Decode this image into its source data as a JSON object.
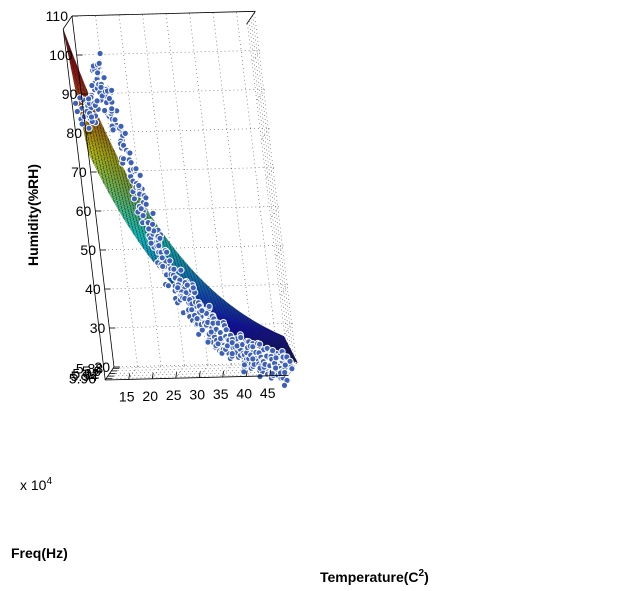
{
  "chart_data": {
    "type": "surface-scatter-3d",
    "title": "",
    "xlabel": "Temperature(C",
    "xlabel_sup": "2",
    "xlabel_close": ")",
    "ylabel": "Freq(Hz)",
    "zlabel": "Humidity(%RH)",
    "y_multiplier": "x 10",
    "y_multiplier_exp": "4",
    "xlim": [
      10,
      49
    ],
    "ylim": [
      5.87,
      5.97
    ],
    "zlim": [
      20,
      110
    ],
    "x_ticks": [
      "15",
      "20",
      "25",
      "30",
      "35",
      "40",
      "45"
    ],
    "y_ticks": [
      "5.88",
      "5.9",
      "5.92",
      "5.94",
      "5.96"
    ],
    "z_ticks": [
      "20",
      "30",
      "40",
      "50",
      "60",
      "70",
      "80",
      "90",
      "100",
      "110"
    ],
    "grid": true,
    "colormap": "jet",
    "surface_fit": {
      "model": "exponential decay in temperature",
      "corner_values": {
        "x10_yfront": 110,
        "x49_yfront": 30,
        "x10_yback": 75,
        "x49_yback": 20
      }
    },
    "scatter_style": {
      "fill": "#3c5fb8",
      "edge": "#ffffff"
    },
    "scatter_points": [
      [
        11.2,
        88
      ],
      [
        12.0,
        87
      ],
      [
        12.8,
        86
      ],
      [
        13.5,
        90
      ],
      [
        14.2,
        92
      ],
      [
        14.8,
        95
      ],
      [
        15.5,
        98
      ],
      [
        16.0,
        94
      ],
      [
        16.5,
        92
      ],
      [
        17.0,
        88
      ],
      [
        17.5,
        85
      ],
      [
        18.2,
        82
      ],
      [
        19.0,
        78
      ],
      [
        19.8,
        74
      ],
      [
        20.5,
        70
      ],
      [
        21.0,
        66
      ],
      [
        21.8,
        62
      ],
      [
        22.5,
        58
      ],
      [
        23.0,
        55
      ],
      [
        23.8,
        52
      ],
      [
        24.5,
        49
      ],
      [
        25.0,
        47
      ],
      [
        25.8,
        45
      ],
      [
        26.5,
        43
      ],
      [
        27.0,
        41
      ],
      [
        27.8,
        40
      ],
      [
        28.5,
        39
      ],
      [
        29.0,
        38
      ],
      [
        29.8,
        37
      ],
      [
        30.5,
        35
      ],
      [
        31.0,
        34
      ],
      [
        31.8,
        33
      ],
      [
        32.5,
        32
      ],
      [
        33.0,
        31
      ],
      [
        33.8,
        30
      ],
      [
        34.5,
        29
      ],
      [
        35.0,
        28
      ],
      [
        35.8,
        28
      ],
      [
        36.5,
        27
      ],
      [
        37.0,
        26
      ],
      [
        37.8,
        26
      ],
      [
        38.5,
        25
      ],
      [
        39.0,
        25
      ],
      [
        39.8,
        24
      ],
      [
        40.5,
        24
      ],
      [
        41.0,
        23
      ],
      [
        41.8,
        23
      ],
      [
        42.5,
        22
      ],
      [
        43.0,
        22
      ],
      [
        43.8,
        22
      ],
      [
        44.5,
        21
      ],
      [
        45.0,
        21
      ],
      [
        45.8,
        21
      ],
      [
        46.5,
        21
      ],
      [
        47.0,
        21
      ],
      [
        47.8,
        20
      ]
    ]
  }
}
